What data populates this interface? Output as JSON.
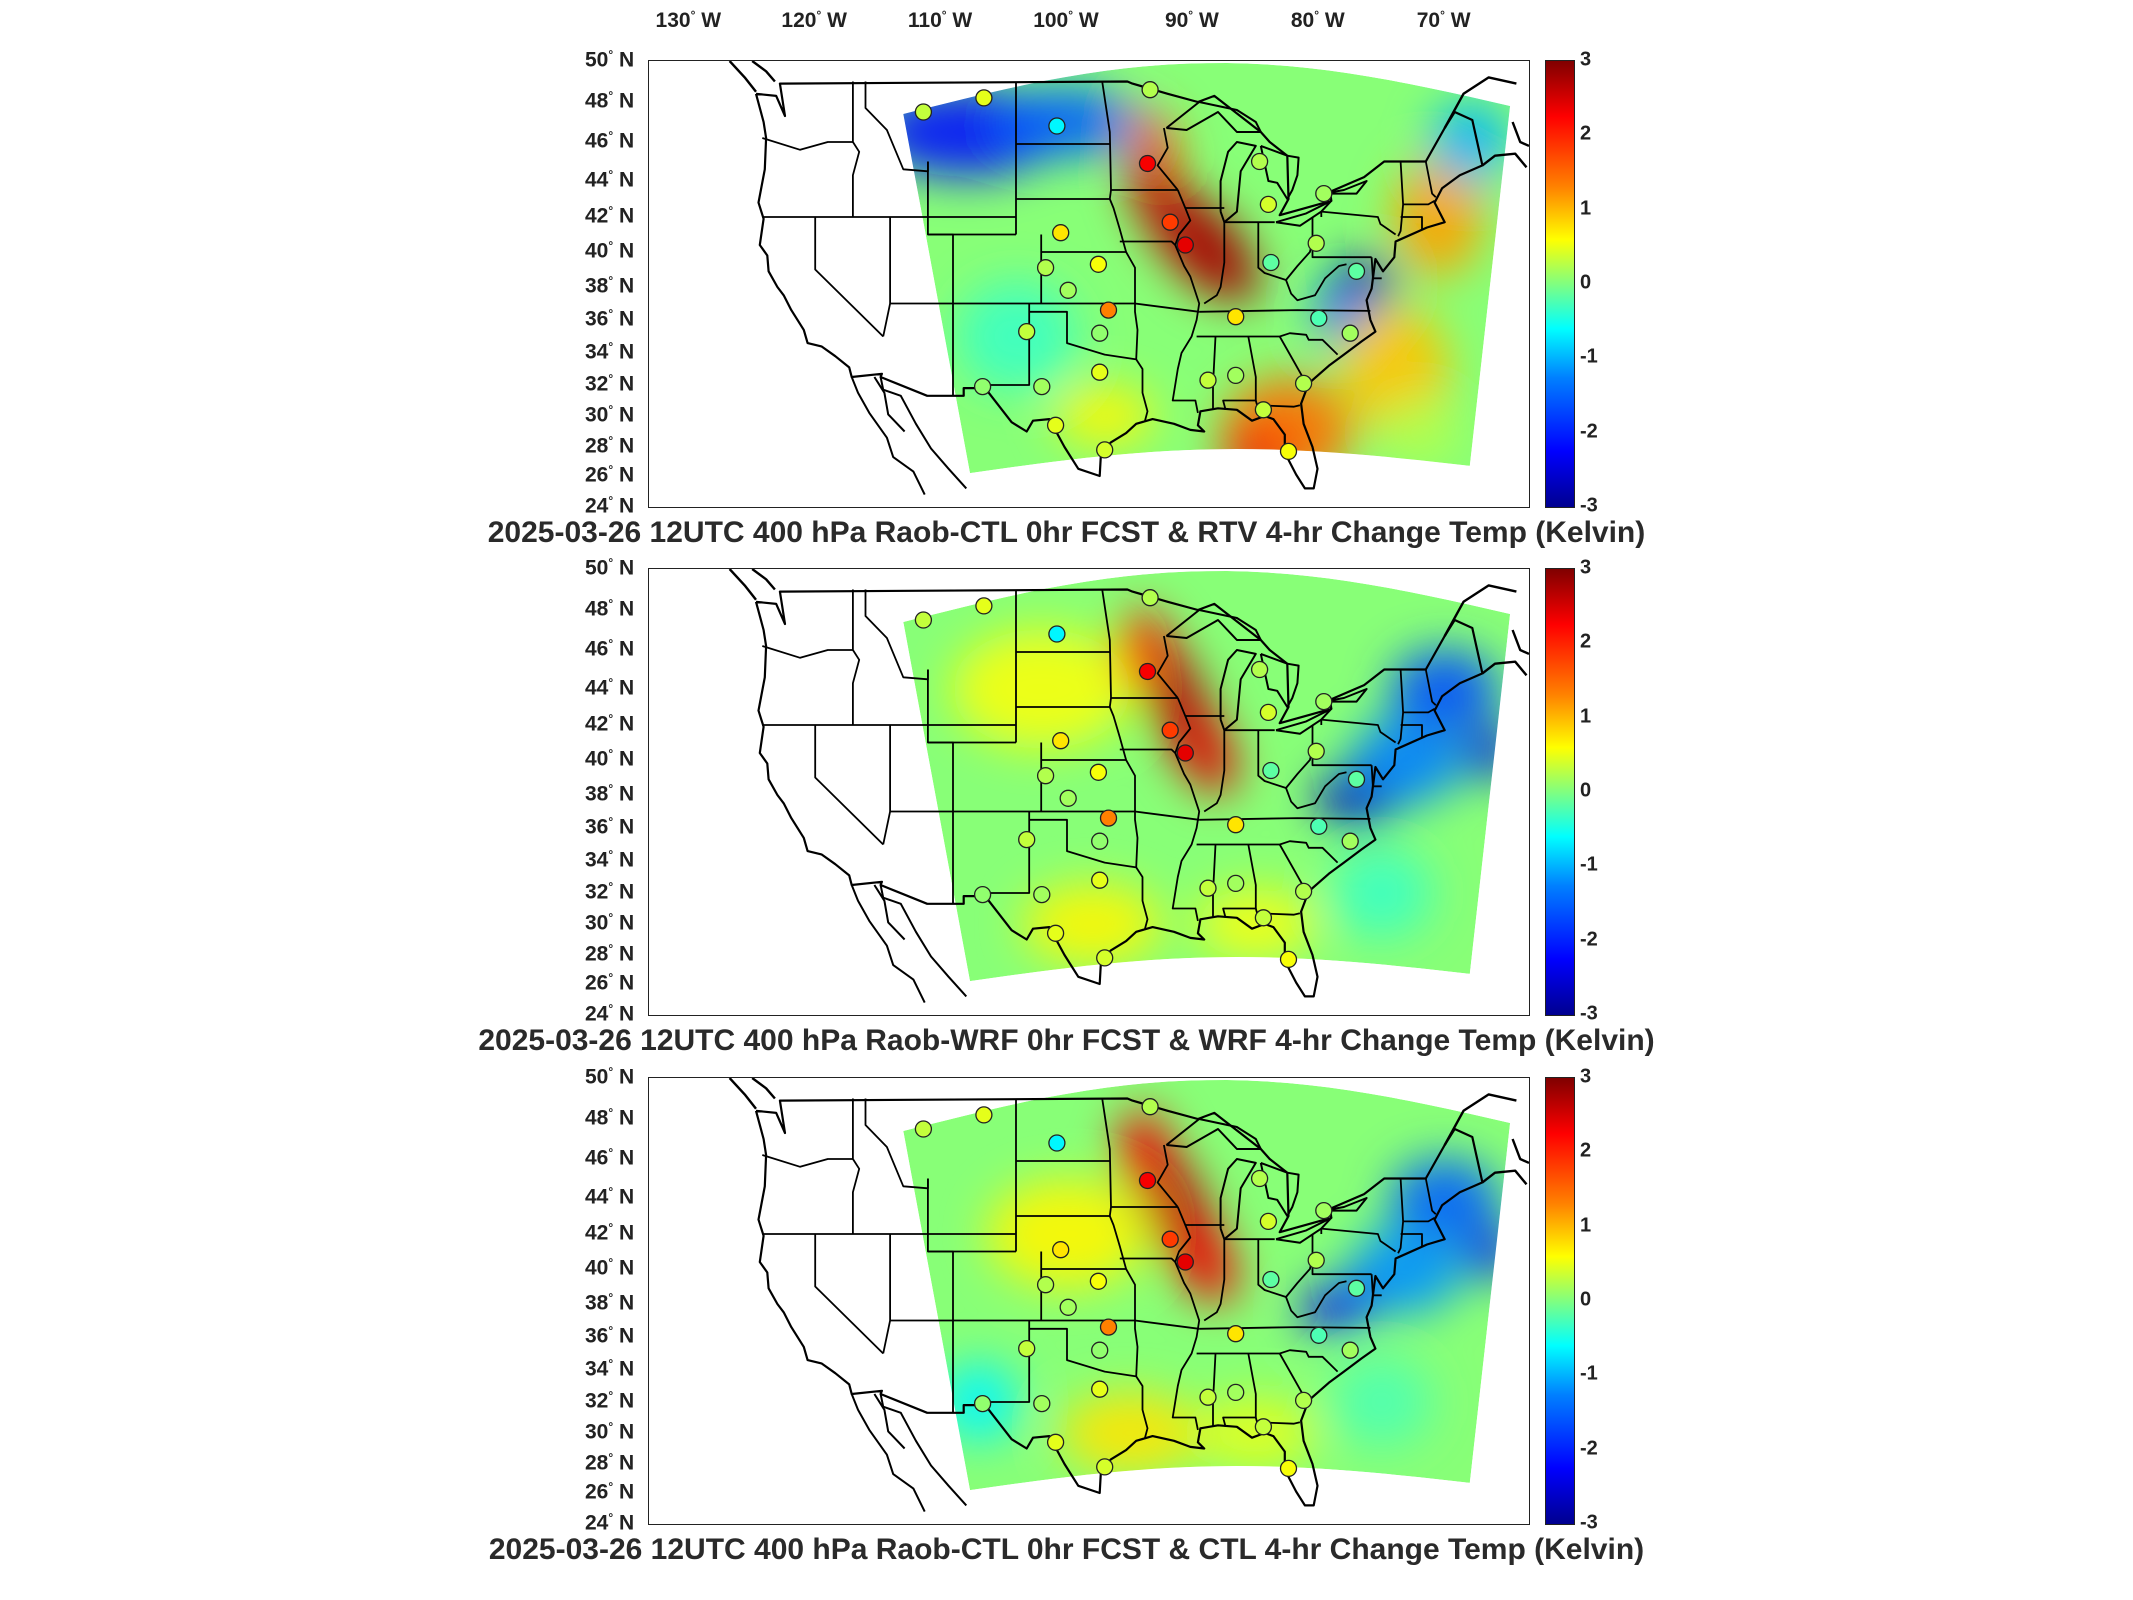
{
  "lon_labels": [
    {
      "deg": "130",
      "hem": "W"
    },
    {
      "deg": "120",
      "hem": "W"
    },
    {
      "deg": "110",
      "hem": "W"
    },
    {
      "deg": "100",
      "hem": "W"
    },
    {
      "deg": "90",
      "hem": "W"
    },
    {
      "deg": "80",
      "hem": "W"
    },
    {
      "deg": "70",
      "hem": "W"
    }
  ],
  "lat_labels": [
    {
      "deg": "50",
      "hem": "N"
    },
    {
      "deg": "48",
      "hem": "N"
    },
    {
      "deg": "46",
      "hem": "N"
    },
    {
      "deg": "44",
      "hem": "N"
    },
    {
      "deg": "42",
      "hem": "N"
    },
    {
      "deg": "40",
      "hem": "N"
    },
    {
      "deg": "38",
      "hem": "N"
    },
    {
      "deg": "36",
      "hem": "N"
    },
    {
      "deg": "34",
      "hem": "N"
    },
    {
      "deg": "32",
      "hem": "N"
    },
    {
      "deg": "30",
      "hem": "N"
    },
    {
      "deg": "28",
      "hem": "N"
    },
    {
      "deg": "26",
      "hem": "N"
    },
    {
      "deg": "24",
      "hem": "N"
    }
  ],
  "colorbar": {
    "min": -3,
    "max": 3,
    "ticks": [
      "3",
      "2",
      "1",
      "0",
      "-1",
      "-2",
      "-3"
    ],
    "colormap": "jet"
  },
  "panels": [
    {
      "title": "2025-03-26 12UTC 400 hPa Raob-CTL 0hr FCST & RTV 4-hr Change Temp (Kelvin)",
      "field": "rtv"
    },
    {
      "title": "2025-03-26 12UTC 400 hPa Raob-WRF 0hr FCST & WRF 4-hr Change Temp (Kelvin)",
      "field": "wrf"
    },
    {
      "title": "2025-03-26 12UTC 400 hPa Raob-CTL 0hr FCST & CTL 4-hr Change Temp (Kelvin)",
      "field": "ctl"
    }
  ],
  "raob_stations": [
    {
      "lon": -111.4,
      "lat": 47.5,
      "value": 0.4
    },
    {
      "lon": -106.6,
      "lat": 48.2,
      "value": 0.6
    },
    {
      "lon": -100.8,
      "lat": 46.8,
      "value": -0.8
    },
    {
      "lon": -93.4,
      "lat": 48.6,
      "value": 0.3
    },
    {
      "lon": -93.6,
      "lat": 44.9,
      "value": 2.3
    },
    {
      "lon": -84.7,
      "lat": 45.0,
      "value": 0.3
    },
    {
      "lon": -100.5,
      "lat": 41.1,
      "value": 0.9
    },
    {
      "lon": -91.8,
      "lat": 41.7,
      "value": 1.9
    },
    {
      "lon": -90.6,
      "lat": 40.4,
      "value": 2.4
    },
    {
      "lon": -84.0,
      "lat": 42.7,
      "value": 0.5
    },
    {
      "lon": -79.6,
      "lat": 43.3,
      "value": 0.2
    },
    {
      "lon": -83.8,
      "lat": 39.4,
      "value": -0.2
    },
    {
      "lon": -80.2,
      "lat": 40.5,
      "value": 0.3
    },
    {
      "lon": -101.7,
      "lat": 39.1,
      "value": 0.3
    },
    {
      "lon": -97.5,
      "lat": 39.3,
      "value": 0.7
    },
    {
      "lon": -99.9,
      "lat": 37.8,
      "value": 0.2
    },
    {
      "lon": -96.7,
      "lat": 36.6,
      "value": 1.5
    },
    {
      "lon": -103.2,
      "lat": 35.3,
      "value": 0.4
    },
    {
      "lon": -97.4,
      "lat": 35.2,
      "value": 0.1
    },
    {
      "lon": -86.6,
      "lat": 36.2,
      "value": 0.9
    },
    {
      "lon": -80.0,
      "lat": 36.1,
      "value": -0.3
    },
    {
      "lon": -77.0,
      "lat": 38.9,
      "value": -0.2
    },
    {
      "lon": -77.5,
      "lat": 35.2,
      "value": 0.2
    },
    {
      "lon": -106.7,
      "lat": 31.9,
      "value": 0.1
    },
    {
      "lon": -102.0,
      "lat": 31.9,
      "value": 0.2
    },
    {
      "lon": -97.4,
      "lat": 32.8,
      "value": 0.6
    },
    {
      "lon": -88.8,
      "lat": 32.3,
      "value": 0.4
    },
    {
      "lon": -86.6,
      "lat": 32.6,
      "value": 0.2
    },
    {
      "lon": -81.2,
      "lat": 32.1,
      "value": 0.3
    },
    {
      "lon": -84.4,
      "lat": 30.4,
      "value": 0.4
    },
    {
      "lon": -100.9,
      "lat": 29.4,
      "value": 0.6
    },
    {
      "lon": -97.0,
      "lat": 27.8,
      "value": 0.5
    },
    {
      "lon": -82.4,
      "lat": 27.7,
      "value": 0.7
    }
  ]
}
